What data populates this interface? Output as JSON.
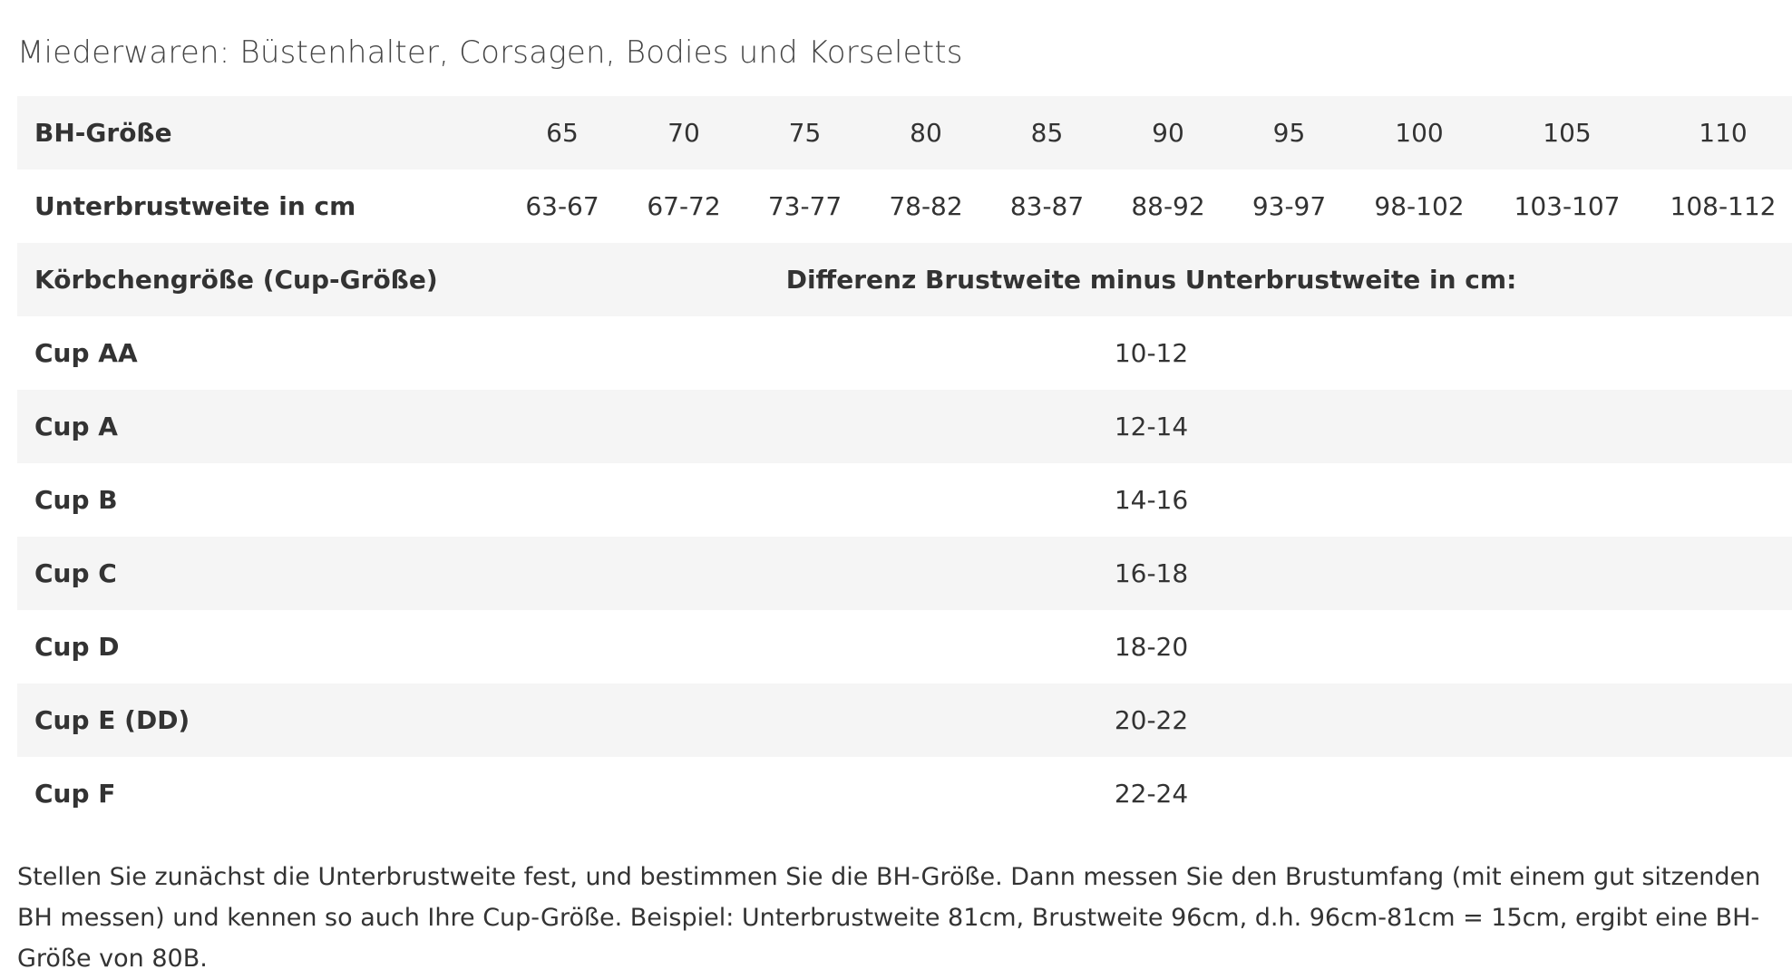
{
  "title": "Miederwaren: Büstenhalter, Corsagen, Bodies und Korseletts",
  "size_row": {
    "label": "BH-Größe",
    "values": [
      "65",
      "70",
      "75",
      "80",
      "85",
      "90",
      "95",
      "100",
      "105",
      "110"
    ]
  },
  "underbust_row": {
    "label": "Unterbrustweite in cm",
    "values": [
      "63-67",
      "67-72",
      "73-77",
      "78-82",
      "83-87",
      "88-92",
      "93-97",
      "98-102",
      "103-107",
      "108-112"
    ]
  },
  "cup_header": {
    "label": "Körbchengröße (Cup-Größe)",
    "difference_label": "Differenz Brustweite minus Unterbrustweite in cm:"
  },
  "cups": [
    {
      "label": "Cup AA",
      "value": "10-12"
    },
    {
      "label": "Cup A",
      "value": "12-14"
    },
    {
      "label": "Cup B",
      "value": "14-16"
    },
    {
      "label": "Cup C",
      "value": "16-18"
    },
    {
      "label": "Cup D",
      "value": "18-20"
    },
    {
      "label": "Cup E (DD)",
      "value": "20-22"
    },
    {
      "label": "Cup F",
      "value": "22-24"
    }
  ],
  "note": "Stellen Sie zunächst die Unterbrustweite fest, und bestimmen Sie die BH-Größe. Dann messen Sie den Brustumfang (mit einem gut sitzenden BH messen) und kennen so auch Ihre Cup-Größe. Beispiel: Unterbrustweite 81cm, Brustweite 96cm, d.h. 96cm-81cm = 15cm, ergibt eine BH-Größe von 80B."
}
